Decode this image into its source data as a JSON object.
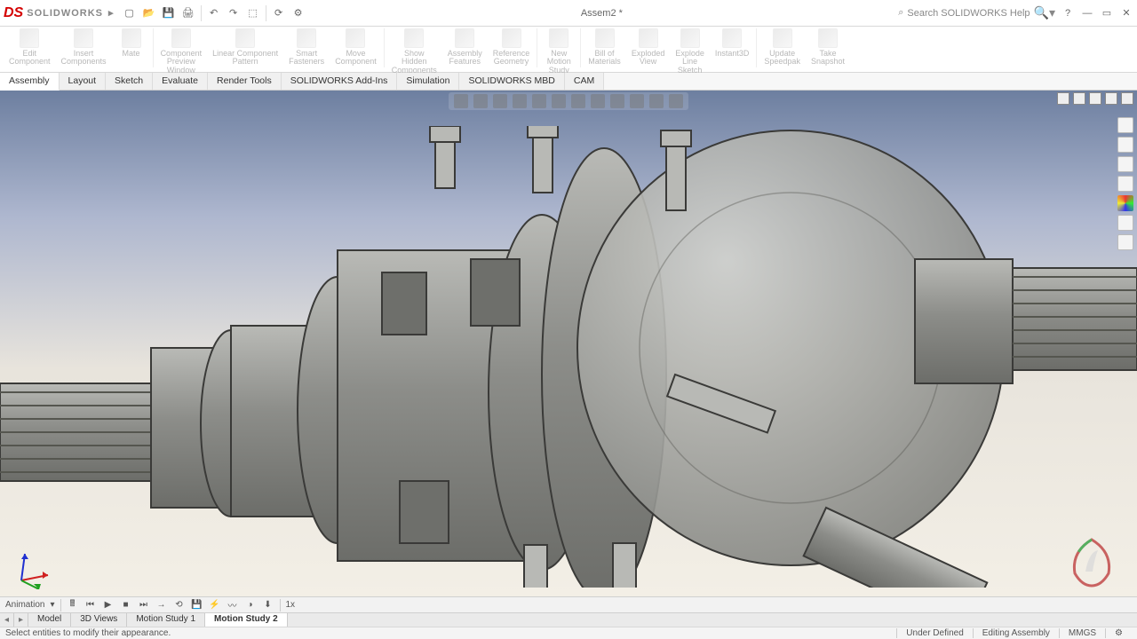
{
  "app": {
    "name": "SOLIDWORKS",
    "document_title": "Assem2 *",
    "search_placeholder": "Search SOLIDWORKS Help"
  },
  "colors": {
    "brand_red": "#d40000",
    "sky_top": "#6d7fa0",
    "sky_mid": "#aeb7cf",
    "ground": "#f3efe6",
    "model_grey": "#8a8b88",
    "model_edge": "#3a3a38"
  },
  "qat": [
    {
      "name": "new",
      "glyph": "▢"
    },
    {
      "name": "open",
      "glyph": "📂"
    },
    {
      "name": "save",
      "glyph": "💾"
    },
    {
      "name": "print",
      "glyph": "🖨"
    },
    {
      "name": "undo",
      "glyph": "↶"
    },
    {
      "name": "redo",
      "glyph": "↷"
    },
    {
      "name": "select",
      "glyph": "⬚"
    },
    {
      "name": "rebuild",
      "glyph": "⟳"
    },
    {
      "name": "options",
      "glyph": "⚙"
    }
  ],
  "ribbon": [
    {
      "name": "edit-component",
      "label": "Edit\nComponent"
    },
    {
      "name": "insert-components",
      "label": "Insert\nComponents"
    },
    {
      "name": "mate",
      "label": "Mate"
    },
    {
      "name": "component-preview-window",
      "label": "Component\nPreview\nWindow"
    },
    {
      "name": "linear-component-pattern",
      "label": "Linear Component\nPattern"
    },
    {
      "name": "smart-fasteners",
      "label": "Smart\nFasteners"
    },
    {
      "name": "move-component",
      "label": "Move\nComponent"
    },
    {
      "name": "show-hidden-components",
      "label": "Show\nHidden\nComponents"
    },
    {
      "name": "assembly-features",
      "label": "Assembly\nFeatures"
    },
    {
      "name": "reference-geometry",
      "label": "Reference\nGeometry"
    },
    {
      "name": "new-motion-study",
      "label": "New\nMotion\nStudy"
    },
    {
      "name": "bill-of-materials",
      "label": "Bill of\nMaterials"
    },
    {
      "name": "exploded-view",
      "label": "Exploded\nView"
    },
    {
      "name": "explode-line-sketch",
      "label": "Explode\nLine\nSketch"
    },
    {
      "name": "instant3d",
      "label": "Instant3D"
    },
    {
      "name": "update-speedpak",
      "label": "Update\nSpeedpak"
    },
    {
      "name": "take-snapshot",
      "label": "Take\nSnapshot"
    }
  ],
  "command_tabs": [
    {
      "name": "assembly",
      "label": "Assembly",
      "active": true
    },
    {
      "name": "layout",
      "label": "Layout"
    },
    {
      "name": "sketch",
      "label": "Sketch"
    },
    {
      "name": "evaluate",
      "label": "Evaluate"
    },
    {
      "name": "render-tools",
      "label": "Render Tools"
    },
    {
      "name": "solidworks-addins",
      "label": "SOLIDWORKS Add-Ins"
    },
    {
      "name": "simulation",
      "label": "Simulation"
    },
    {
      "name": "solidworks-mbd",
      "label": "SOLIDWORKS MBD"
    },
    {
      "name": "cam",
      "label": "CAM"
    }
  ],
  "headsup_count": 12,
  "right_tools": [
    {
      "name": "home"
    },
    {
      "name": "view"
    },
    {
      "name": "display"
    },
    {
      "name": "scene"
    },
    {
      "name": "appearance",
      "color": true
    },
    {
      "name": "decals"
    },
    {
      "name": "settings"
    }
  ],
  "motionbar": {
    "label": "Animation",
    "buttons": [
      {
        "name": "calc",
        "glyph": "🖩"
      },
      {
        "name": "to-start",
        "glyph": "⏮"
      },
      {
        "name": "play",
        "glyph": "▶"
      },
      {
        "name": "stop",
        "glyph": "■"
      },
      {
        "name": "to-end",
        "glyph": "⏭"
      },
      {
        "name": "playback-normal",
        "glyph": "→"
      },
      {
        "name": "loop",
        "glyph": "⟲"
      },
      {
        "name": "save-anim",
        "glyph": "💾"
      },
      {
        "name": "motor",
        "glyph": "⚡"
      },
      {
        "name": "spring",
        "glyph": "〰"
      },
      {
        "name": "contact",
        "glyph": "◑"
      },
      {
        "name": "gravity",
        "glyph": "⬇"
      }
    ],
    "speed_value": "1x"
  },
  "bottom_tabs": [
    {
      "name": "model",
      "label": "Model"
    },
    {
      "name": "3d-views",
      "label": "3D Views"
    },
    {
      "name": "motion-study-1",
      "label": "Motion Study 1"
    },
    {
      "name": "motion-study-2",
      "label": "Motion Study 2",
      "active": true
    }
  ],
  "status": {
    "prompt": "Select entities to modify their appearance.",
    "define_state": "Under Defined",
    "edit_state": "Editing Assembly",
    "units": "MMGS"
  },
  "model_hint": "Transparent differential / CV-joint assembly — stepped splined input shaft on the left, large bell housing with radial bolts on the right, splined output stub on far right; rendered in neutral grey with dark edge lines."
}
